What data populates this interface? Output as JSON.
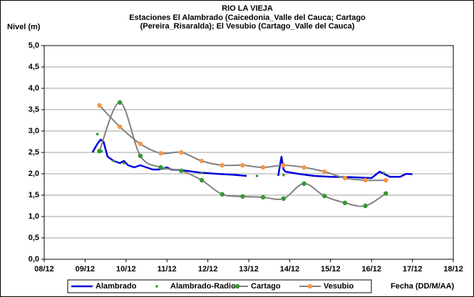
{
  "chart_data": {
    "type": "line",
    "title": "RIO LA VIEJA",
    "subtitle": [
      "Estaciones El Alambrado (Caicedonia_Valle del Cauca; Cartago",
      "(Pereira_Risaralda);  El Vesubio (Cartago_Valle del Cauca)"
    ],
    "y_label": "Nivel (m)",
    "x_label": "Fecha (DD/M/AA)",
    "xlim": [
      8,
      18
    ],
    "xticks": [
      {
        "value": 8,
        "label": "08/12"
      },
      {
        "value": 9,
        "label": "09/12"
      },
      {
        "value": 10,
        "label": "10/12"
      },
      {
        "value": 11,
        "label": "11/12"
      },
      {
        "value": 12,
        "label": "12/12"
      },
      {
        "value": 13,
        "label": "13/12"
      },
      {
        "value": 14,
        "label": "14/12"
      },
      {
        "value": 15,
        "label": "15/12"
      },
      {
        "value": 16,
        "label": "16/12"
      },
      {
        "value": 17,
        "label": "17/12"
      },
      {
        "value": 18,
        "label": "18/12"
      }
    ],
    "ylim": [
      0,
      5
    ],
    "yticks": [
      {
        "value": 0,
        "label": "0,0"
      },
      {
        "value": 0.5,
        "label": "0,5"
      },
      {
        "value": 1,
        "label": "1,0"
      },
      {
        "value": 1.5,
        "label": "1,5"
      },
      {
        "value": 2,
        "label": "2,0"
      },
      {
        "value": 2.5,
        "label": "2,5"
      },
      {
        "value": 3,
        "label": "3,0"
      },
      {
        "value": 3.5,
        "label": "3,5"
      },
      {
        "value": 4,
        "label": "4,0"
      },
      {
        "value": 4.5,
        "label": "4,5"
      },
      {
        "value": 5,
        "label": "5,0"
      }
    ],
    "grid": true,
    "legend": "bottom",
    "series": [
      {
        "name": "Alambrado",
        "color": "#0000dd",
        "line": true,
        "marker": false,
        "smooth": false,
        "x": [
          9.18,
          9.3,
          9.38,
          9.45,
          9.55,
          9.7,
          9.85,
          9.95,
          10.05,
          10.2,
          10.35,
          10.5,
          10.65,
          10.8,
          11.0,
          11.1,
          11.4,
          11.8,
          12.2,
          12.6,
          12.95,
          13.3,
          13.72,
          13.8,
          13.85,
          13.9,
          14.2,
          14.6,
          15.0,
          15.5,
          16.0,
          16.2,
          16.3,
          16.45,
          16.7,
          16.85,
          17.0
        ],
        "values": [
          2.5,
          2.7,
          2.8,
          2.75,
          2.4,
          2.3,
          2.25,
          2.3,
          2.2,
          2.15,
          2.2,
          2.15,
          2.1,
          2.1,
          2.15,
          2.1,
          2.08,
          2.03,
          2.0,
          1.98,
          1.95,
          null,
          1.95,
          2.4,
          2.1,
          2.05,
          2.0,
          1.95,
          1.93,
          1.92,
          1.9,
          2.05,
          2.0,
          1.93,
          1.93,
          2.0,
          1.99
        ]
      },
      {
        "name": "Alambrado-Radio",
        "color": "#339933",
        "line": false,
        "marker": true,
        "marker_color": "#339933",
        "marker_size": 1.8,
        "smooth": false,
        "x": [
          9.3,
          9.4,
          9.7,
          9.95,
          10.95,
          11.85,
          13.2,
          13.85,
          16.3
        ],
        "values": [
          2.93,
          2.53,
          2.3,
          2.25,
          2.12,
          2.02,
          1.95,
          1.97,
          2.02
        ]
      },
      {
        "name": "Cartago",
        "color": "#808080",
        "line": true,
        "marker": true,
        "marker_color": "#339933",
        "marker_size": 3.2,
        "smooth": true,
        "x": [
          9.35,
          9.85,
          10.35,
          10.85,
          11.35,
          11.85,
          12.35,
          12.85,
          13.35,
          13.85,
          14.35,
          14.85,
          15.35,
          15.85,
          16.35
        ],
        "values": [
          2.53,
          3.67,
          2.42,
          2.15,
          2.07,
          1.85,
          1.52,
          1.47,
          1.45,
          1.42,
          1.77,
          1.48,
          1.32,
          1.25,
          1.54
        ]
      },
      {
        "name": "Vesubio",
        "color": "#808080",
        "line": true,
        "marker": true,
        "marker_color": "#f79646",
        "marker_size": 3.2,
        "smooth": true,
        "x": [
          9.35,
          9.85,
          10.35,
          10.85,
          11.35,
          11.85,
          12.35,
          12.85,
          13.35,
          13.85,
          14.35,
          14.85,
          15.35,
          15.85,
          16.35
        ],
        "values": [
          3.6,
          3.1,
          2.7,
          2.48,
          2.5,
          2.3,
          2.2,
          2.2,
          2.15,
          2.2,
          2.15,
          2.05,
          1.9,
          1.85,
          1.85
        ]
      }
    ]
  }
}
